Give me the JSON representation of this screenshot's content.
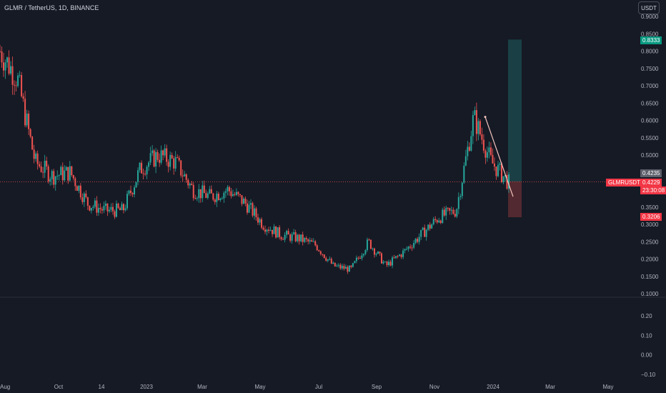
{
  "header": {
    "title": "GLMR / TetherUS, 1D, BINANCE",
    "currency_button": "USDT"
  },
  "colors": {
    "background": "#161a25",
    "up": "#26a69a",
    "down": "#ef5350",
    "grid": "#1e222d"
  },
  "price_tags": {
    "target": "0.8333",
    "entry": "0.4235",
    "symbol": "GLMRUSDT",
    "last": "0.4229",
    "countdown": "23:30:08",
    "stop": "0.3206"
  },
  "chart_data": {
    "type": "candlestick",
    "title": "GLMR / TetherUS, 1D, BINANCE",
    "x_ticks": [
      "Aug",
      "Oct",
      "14",
      "2023",
      "Mar",
      "May",
      "Jul",
      "Sep",
      "Nov",
      "2024",
      "Mar",
      "May"
    ],
    "y_ticks": [
      "0.9000",
      "0.8500",
      "0.8000",
      "0.7500",
      "0.7000",
      "0.6500",
      "0.6000",
      "0.5500",
      "0.5000",
      "0.4500",
      "0.4000",
      "0.3500",
      "0.3000",
      "0.2500",
      "0.2000",
      "0.1500",
      "0.1000"
    ],
    "y_range": [
      0.1,
      0.9
    ],
    "lower_pane_ticks": [
      "0.20",
      "0.10",
      "0.00",
      "−0.10"
    ],
    "lower_range": [
      -0.1,
      0.2
    ],
    "price_path": [
      [
        "Aug",
        0.8
      ],
      [
        "Aug",
        0.72
      ],
      [
        "Oct",
        0.48
      ],
      [
        "Oct",
        0.44
      ],
      [
        "14",
        0.45
      ],
      [
        "14",
        0.36
      ],
      [
        "14",
        0.34
      ],
      [
        "2023",
        0.34
      ],
      [
        "2023",
        0.46
      ],
      [
        "2023",
        0.5
      ],
      [
        "Mar",
        0.48
      ],
      [
        "Mar",
        0.4
      ],
      [
        "Mar",
        0.38
      ],
      [
        "May",
        0.4
      ],
      [
        "May",
        0.36
      ],
      [
        "May",
        0.3
      ],
      [
        "Jul",
        0.27
      ],
      [
        "Jul",
        0.26
      ],
      [
        "Jul",
        0.24
      ],
      [
        "Sep",
        0.18
      ],
      [
        "Sep",
        0.17
      ],
      [
        "Sep",
        0.25
      ],
      [
        "Nov",
        0.18
      ],
      [
        "Nov",
        0.22
      ],
      [
        "Nov",
        0.27
      ],
      [
        "Nov",
        0.32
      ],
      [
        "2024",
        0.34
      ],
      [
        "2024",
        0.61
      ],
      [
        "2024",
        0.48
      ],
      [
        "2024",
        0.42
      ]
    ],
    "trendline": {
      "from": 0.61,
      "to": 0.38
    },
    "position": {
      "target": 0.8333,
      "entry": 0.4235,
      "stop": 0.3206
    },
    "last_price": 0.4229
  }
}
